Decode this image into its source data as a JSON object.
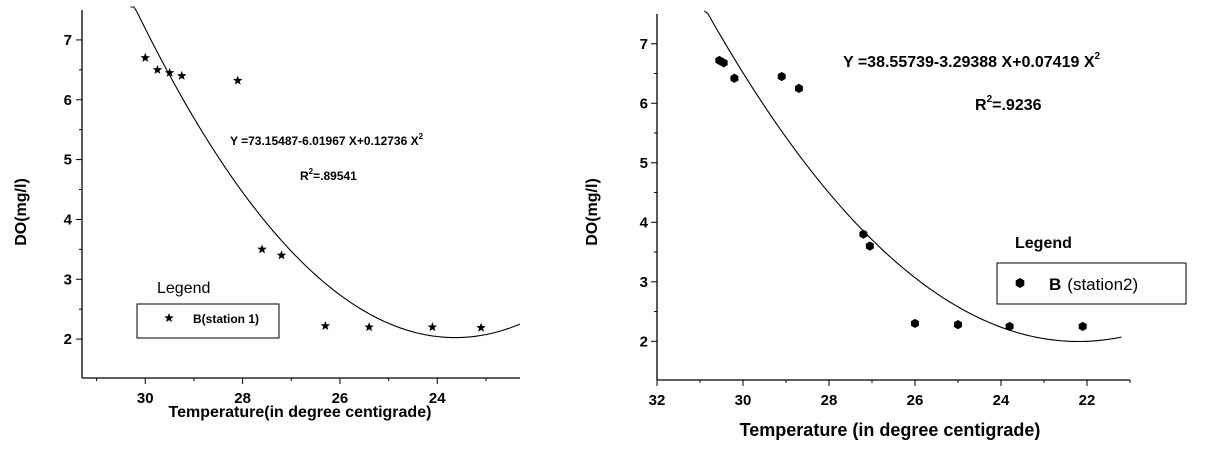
{
  "chart_data": [
    {
      "type": "scatter",
      "xlabel": "Temperature(in degree centigrade)",
      "ylabel": "DO(mg/l)",
      "x_ticks": [
        "30",
        "28",
        "26",
        "24"
      ],
      "y_ticks": [
        "2",
        "3",
        "4",
        "5",
        "6",
        "7"
      ],
      "xlim": [
        31.3,
        22.3
      ],
      "ylim": [
        1.35,
        7.5
      ],
      "x_reversed": true,
      "grid": false,
      "marker": "star",
      "series": [
        {
          "name": "B(station 1)",
          "x": [
            30.0,
            29.75,
            29.5,
            29.25,
            28.1,
            27.6,
            27.2,
            26.3,
            25.4,
            24.1,
            23.1
          ],
          "y": [
            6.7,
            6.5,
            6.45,
            6.4,
            6.32,
            3.5,
            3.4,
            2.22,
            2.2,
            2.2,
            2.19
          ]
        }
      ],
      "fit": {
        "a": 73.15487,
        "b": -6.01967,
        "c": 0.12736,
        "x_range": [
          30.3,
          22.3
        ]
      },
      "equation_prefix": "Y =73.15487-6.01967 X+0.12736 X",
      "equation_sup": "2",
      "r2_prefix": "R",
      "r2_sup": "2",
      "r2_value": "=.89541",
      "legend": {
        "title": "Legend",
        "label": "B(station 1)",
        "placement": "bottom-left"
      }
    },
    {
      "type": "scatter",
      "xlabel": "Temperature (in degree centigrade)",
      "ylabel": "DO(mg/l)",
      "x_ticks": [
        "32",
        "30",
        "28",
        "26",
        "24",
        "22"
      ],
      "y_ticks": [
        "2",
        "3",
        "4",
        "5",
        "6",
        "7"
      ],
      "xlim": [
        32,
        21
      ],
      "ylim": [
        1.35,
        7.5
      ],
      "x_reversed": true,
      "grid": false,
      "marker": "hexagon",
      "series": [
        {
          "name": "B",
          "x": [
            30.55,
            30.45,
            30.2,
            29.1,
            28.7,
            27.2,
            27.05,
            26.0,
            25.0,
            23.8,
            22.1
          ],
          "y": [
            6.72,
            6.68,
            6.42,
            6.45,
            6.25,
            3.8,
            3.6,
            2.3,
            2.28,
            2.25,
            2.25
          ]
        }
      ],
      "fit": {
        "a": 38.55739,
        "b": -3.29388,
        "c": 0.07419,
        "x_range": [
          30.9,
          21.2
        ]
      },
      "equation_prefix": "Y =38.55739-3.29388 X+0.07419 X",
      "equation_sup": "2",
      "r2_prefix": "R",
      "r2_sup": "2",
      "r2_value": "=.9236",
      "legend": {
        "title": "Legend",
        "label_bold": "B",
        "label_rest": "(station2)",
        "placement": "right"
      }
    }
  ]
}
